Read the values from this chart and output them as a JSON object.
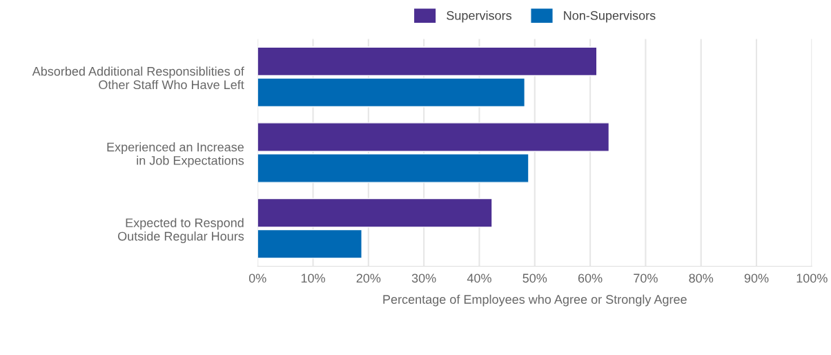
{
  "chart_data": {
    "type": "bar",
    "orientation": "horizontal",
    "categories": [
      "Absorbed Additional Responsiblities of\nOther Staff Who Have Left",
      "Experienced an Increase\nin Job Expectations",
      "Expected to Respond\nOutside Regular Hours"
    ],
    "series": [
      {
        "name": "Supervisors",
        "color": "#4b2e91",
        "values": [
          61.2,
          63.4,
          42.3
        ]
      },
      {
        "name": "Non-Supervisors",
        "color": "#0069b4",
        "values": [
          48.2,
          48.9,
          18.8
        ]
      }
    ],
    "xlabel": "Percentage of Employees who Agree or Strongly Agree",
    "xlim": [
      0,
      100
    ],
    "xticks": [
      {
        "value": 0,
        "label": "0%"
      },
      {
        "value": 10,
        "label": "10%"
      },
      {
        "value": 20,
        "label": "20%"
      },
      {
        "value": 30,
        "label": "30%"
      },
      {
        "value": 40,
        "label": "40%"
      },
      {
        "value": 50,
        "label": "50%"
      },
      {
        "value": 60,
        "label": "60%"
      },
      {
        "value": 70,
        "label": "70%"
      },
      {
        "value": 80,
        "label": "80%"
      },
      {
        "value": 90,
        "label": "90%"
      },
      {
        "value": 100,
        "label": "100%"
      }
    ],
    "grid": "x",
    "legend": "top"
  }
}
